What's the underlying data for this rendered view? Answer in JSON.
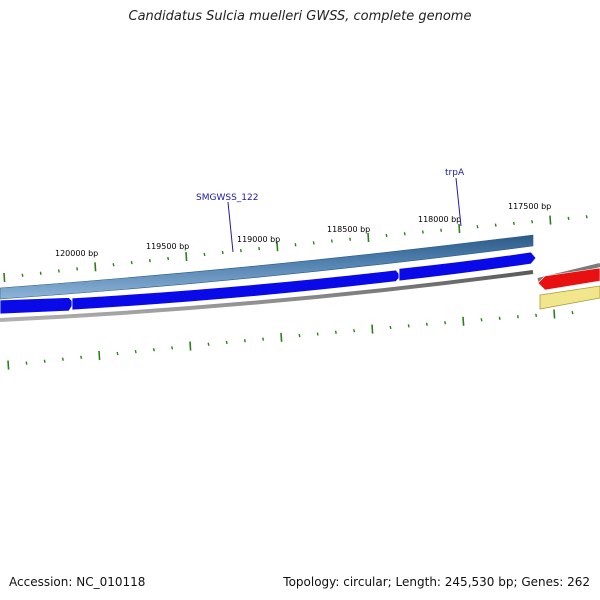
{
  "title": "Candidatus Sulcia muelleri GWSS, complete genome",
  "footer": {
    "accession": "Accession: NC_010118",
    "summary": "Topology: circular; Length: 245,530 bp; Genes: 262"
  },
  "colors": {
    "tick": "#2e7d1e",
    "gene_label": "#1a1aa8",
    "cds_forward": "#0a0ae8",
    "track_band": "#4a7aaa",
    "track_band_dark": "#2c5a86",
    "backbone": "#808080",
    "feature_red": "#e81010",
    "feature_yellow": "#f2e68c"
  },
  "scale": {
    "tick_labels": [
      {
        "label": "120000 bp",
        "bp": 120000
      },
      {
        "label": "119500 bp",
        "bp": 119500
      },
      {
        "label": "119000 bp",
        "bp": 119000
      },
      {
        "label": "118500 bp",
        "bp": 118500
      },
      {
        "label": "118000 bp",
        "bp": 118000
      },
      {
        "label": "117500 bp",
        "bp": 117500
      }
    ]
  },
  "gene_labels": [
    {
      "name": "SMGWSS_122"
    },
    {
      "name": "trpA"
    }
  ]
}
